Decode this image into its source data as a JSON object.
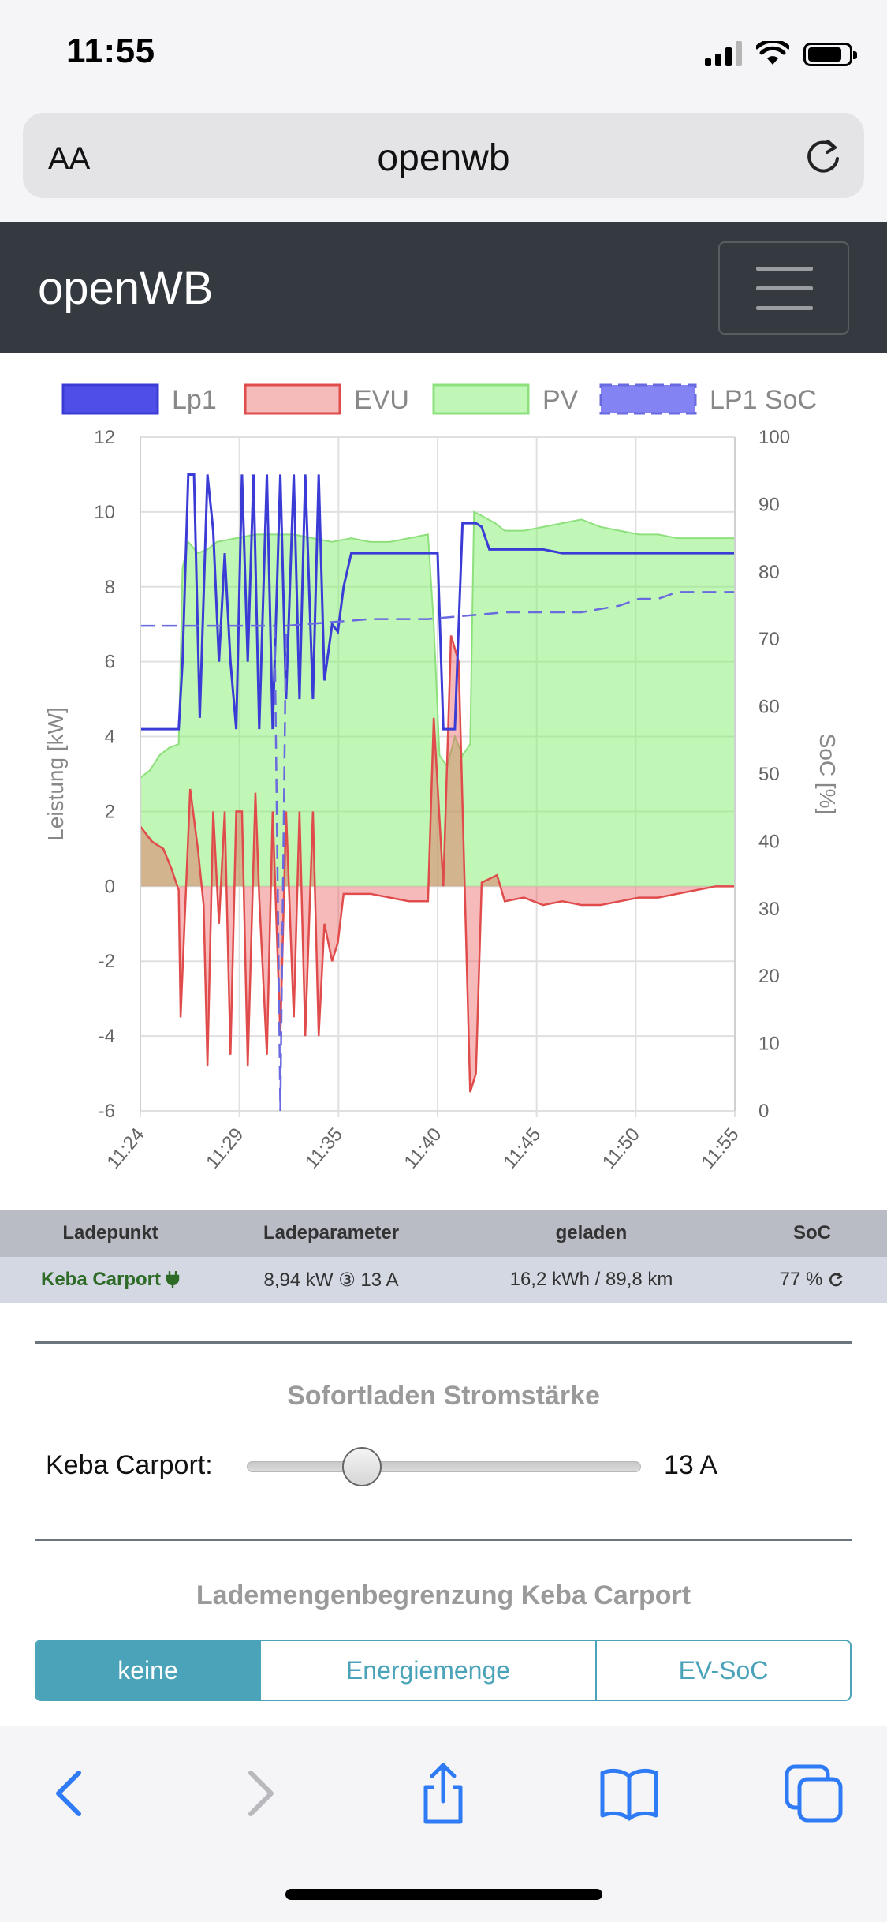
{
  "status_bar": {
    "time": "11:55"
  },
  "browser": {
    "text_size_button": "AA",
    "url": "openwb",
    "toolbar_icons": [
      "back-icon",
      "forward-icon",
      "share-icon",
      "bookmarks-icon",
      "tabs-icon"
    ]
  },
  "navbar": {
    "brand": "openWB"
  },
  "chart_data": {
    "type": "area",
    "x_ticks": [
      "11:24",
      "11:29",
      "11:35",
      "11:40",
      "11:45",
      "11:50",
      "11:55"
    ],
    "ylabel": "Leistung [kW]",
    "y2label": "SoC [%]",
    "ylim": [
      -6,
      12
    ],
    "y_ticks": [
      12,
      10,
      8,
      6,
      4,
      2,
      0,
      -2,
      -4,
      -6
    ],
    "y2lim": [
      0,
      100
    ],
    "y2_ticks": [
      100,
      90,
      80,
      70,
      60,
      50,
      40,
      30,
      20,
      10,
      0
    ],
    "grid": true,
    "legend_position": "top",
    "series": [
      {
        "name": "Lp1",
        "axis": "left",
        "color": "#3b3bd6",
        "points": [
          [
            0,
            4.2
          ],
          [
            1,
            4.2
          ],
          [
            2,
            4.2
          ],
          [
            2.2,
            6
          ],
          [
            2.5,
            11
          ],
          [
            2.8,
            11
          ],
          [
            3.1,
            4.5
          ],
          [
            3.5,
            11
          ],
          [
            3.8,
            9.5
          ],
          [
            4.1,
            6
          ],
          [
            4.4,
            8.9
          ],
          [
            4.7,
            6
          ],
          [
            5,
            4.2
          ],
          [
            5.3,
            11
          ],
          [
            5.6,
            6
          ],
          [
            5.9,
            11
          ],
          [
            6.2,
            4.2
          ],
          [
            6.6,
            11
          ],
          [
            6.9,
            4.2
          ],
          [
            7.3,
            11
          ],
          [
            7.6,
            5
          ],
          [
            8,
            11
          ],
          [
            8.3,
            5
          ],
          [
            8.6,
            11
          ],
          [
            9,
            5
          ],
          [
            9.3,
            11
          ],
          [
            9.6,
            5.5
          ],
          [
            10,
            7
          ],
          [
            10.3,
            6.8
          ],
          [
            10.6,
            8
          ],
          [
            11,
            8.9
          ],
          [
            12,
            8.9
          ],
          [
            13,
            8.9
          ],
          [
            14,
            8.9
          ],
          [
            15,
            8.9
          ],
          [
            15.5,
            8.9
          ],
          [
            15.8,
            4.2
          ],
          [
            16.4,
            4.2
          ],
          [
            16.8,
            9.7
          ],
          [
            17.5,
            9.7
          ],
          [
            17.8,
            9.6
          ],
          [
            18.2,
            9.0
          ],
          [
            19,
            9.0
          ],
          [
            20,
            9.0
          ],
          [
            21,
            9.0
          ],
          [
            22,
            8.9
          ],
          [
            23,
            8.9
          ],
          [
            24,
            8.9
          ],
          [
            25,
            8.9
          ],
          [
            26,
            8.9
          ],
          [
            27,
            8.9
          ],
          [
            28,
            8.9
          ],
          [
            29,
            8.9
          ],
          [
            30,
            8.9
          ],
          [
            31,
            8.9
          ]
        ]
      },
      {
        "name": "EVU",
        "axis": "left",
        "color": "#e04b4b",
        "points": [
          [
            0,
            1.6
          ],
          [
            0.6,
            1.2
          ],
          [
            1.2,
            1.0
          ],
          [
            1.6,
            0.5
          ],
          [
            2,
            -0.1
          ],
          [
            2.1,
            -3.5
          ],
          [
            2.6,
            2.6
          ],
          [
            3,
            1.0
          ],
          [
            3.3,
            -0.5
          ],
          [
            3.5,
            -4.8
          ],
          [
            3.8,
            2.0
          ],
          [
            4.1,
            -1.0
          ],
          [
            4.4,
            2.0
          ],
          [
            4.7,
            -4.5
          ],
          [
            5,
            2.0
          ],
          [
            5.3,
            2.0
          ],
          [
            5.6,
            -4.8
          ],
          [
            6,
            2.5
          ],
          [
            6.2,
            -0.3
          ],
          [
            6.6,
            -4.5
          ],
          [
            6.9,
            2.0
          ],
          [
            7.3,
            -4.0
          ],
          [
            7.6,
            2.0
          ],
          [
            8,
            -3.5
          ],
          [
            8.3,
            2.0
          ],
          [
            8.6,
            -4.0
          ],
          [
            9,
            2.0
          ],
          [
            9.3,
            -4.0
          ],
          [
            9.6,
            -1.0
          ],
          [
            10,
            -2.0
          ],
          [
            10.3,
            -1.5
          ],
          [
            10.6,
            -0.2
          ],
          [
            11,
            -0.2
          ],
          [
            12,
            -0.2
          ],
          [
            13,
            -0.3
          ],
          [
            14,
            -0.4
          ],
          [
            15,
            -0.4
          ],
          [
            15.3,
            4.5
          ],
          [
            15.8,
            0.0
          ],
          [
            16.2,
            6.7
          ],
          [
            16.6,
            6.0
          ],
          [
            17.2,
            -5.5
          ],
          [
            17.5,
            -5.0
          ],
          [
            17.8,
            0.1
          ],
          [
            18.2,
            0.2
          ],
          [
            18.6,
            0.3
          ],
          [
            19,
            -0.4
          ],
          [
            20,
            -0.3
          ],
          [
            21,
            -0.5
          ],
          [
            22,
            -0.4
          ],
          [
            23,
            -0.5
          ],
          [
            24,
            -0.5
          ],
          [
            25,
            -0.4
          ],
          [
            26,
            -0.3
          ],
          [
            27,
            -0.3
          ],
          [
            28,
            -0.2
          ],
          [
            29,
            -0.1
          ],
          [
            30,
            0.0
          ],
          [
            31,
            0.0
          ]
        ]
      },
      {
        "name": "PV",
        "axis": "left",
        "color": "#8ee07d",
        "points": [
          [
            0,
            2.9
          ],
          [
            0.5,
            3.1
          ],
          [
            1,
            3.5
          ],
          [
            1.5,
            3.7
          ],
          [
            2,
            3.8
          ],
          [
            2.2,
            8.5
          ],
          [
            2.5,
            9.2
          ],
          [
            3,
            8.9
          ],
          [
            3.5,
            9.0
          ],
          [
            4,
            9.2
          ],
          [
            5,
            9.3
          ],
          [
            6,
            9.4
          ],
          [
            7,
            9.4
          ],
          [
            8,
            9.4
          ],
          [
            9,
            9.3
          ],
          [
            10,
            9.2
          ],
          [
            11,
            9.3
          ],
          [
            12,
            9.2
          ],
          [
            13,
            9.2
          ],
          [
            14,
            9.3
          ],
          [
            15,
            9.4
          ],
          [
            15.3,
            7.0
          ],
          [
            15.6,
            3.5
          ],
          [
            16,
            3.2
          ],
          [
            16.4,
            4.0
          ],
          [
            16.8,
            3.5
          ],
          [
            17.2,
            3.8
          ],
          [
            17.4,
            10.0
          ],
          [
            17.8,
            9.9
          ],
          [
            18.5,
            9.7
          ],
          [
            19,
            9.5
          ],
          [
            20,
            9.5
          ],
          [
            21,
            9.6
          ],
          [
            22,
            9.7
          ],
          [
            23,
            9.8
          ],
          [
            24,
            9.6
          ],
          [
            25,
            9.5
          ],
          [
            26,
            9.4
          ],
          [
            27,
            9.4
          ],
          [
            28,
            9.3
          ],
          [
            29,
            9.3
          ],
          [
            30,
            9.3
          ],
          [
            31,
            9.3
          ]
        ]
      },
      {
        "name": "LP1 SoC",
        "axis": "right",
        "color": "#6a6ae0",
        "dashed": true,
        "points": [
          [
            0,
            72
          ],
          [
            7,
            72
          ],
          [
            7.3,
            0
          ],
          [
            7.6,
            72
          ],
          [
            12,
            73
          ],
          [
            15,
            73
          ],
          [
            19,
            74
          ],
          [
            23,
            74
          ],
          [
            25,
            75
          ],
          [
            26,
            76
          ],
          [
            27,
            76
          ],
          [
            28,
            77
          ],
          [
            30,
            77
          ],
          [
            31,
            77
          ]
        ]
      }
    ]
  },
  "table": {
    "headers": [
      "Ladepunkt",
      "Ladeparameter",
      "geladen",
      "SoC"
    ],
    "row": {
      "ladepunkt": "Keba Carport",
      "ladeparameter": "8,94 kW ③ 13 A",
      "geladen": "16,2 kWh / 89,8 km",
      "soc": "77 %"
    }
  },
  "sofortladen": {
    "title": "Sofortladen Stromstärke",
    "label": "Keba Carport:",
    "value": 13,
    "min": 6,
    "max": 32,
    "value_text": "13 A"
  },
  "lademengen": {
    "title": "Lademengenbegrenzung Keba Carport",
    "options": [
      "keine",
      "Energiemenge",
      "EV-SoC"
    ],
    "selected": "keine"
  },
  "colors": {
    "navbar": "#343a40",
    "accent": "#4aa3b8",
    "lp1": "#3b3bd6",
    "evu": "#e04b4b",
    "pv": "#8ee07d"
  }
}
